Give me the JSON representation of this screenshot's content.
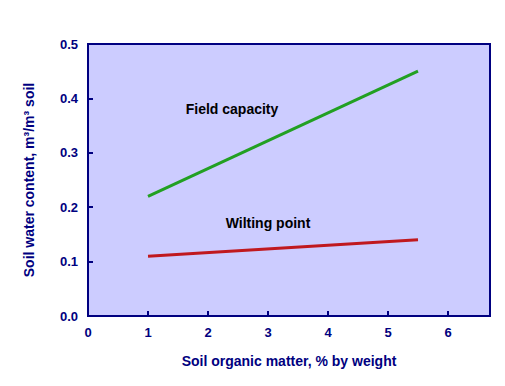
{
  "chart_data": {
    "type": "line",
    "x_label": "Soil organic matter, % by weight",
    "y_label": "Soil water content, m³/m³ soil",
    "x": [
      1,
      5.5
    ],
    "series": [
      {
        "name": "Field capacity",
        "color": "#22a022",
        "values": [
          0.22,
          0.45
        ]
      },
      {
        "name": "Wilting point",
        "color": "#c0191f",
        "values": [
          0.11,
          0.14
        ]
      }
    ],
    "xlim": [
      0,
      6.7
    ],
    "xticks": [
      0,
      1,
      2,
      3,
      4,
      5,
      6
    ],
    "ylim": [
      0,
      0.5
    ],
    "yticks": [
      {
        "value": 0,
        "label": "0.0"
      },
      0.1,
      0.2,
      0.3,
      0.4,
      0.5
    ],
    "grid": false
  }
}
